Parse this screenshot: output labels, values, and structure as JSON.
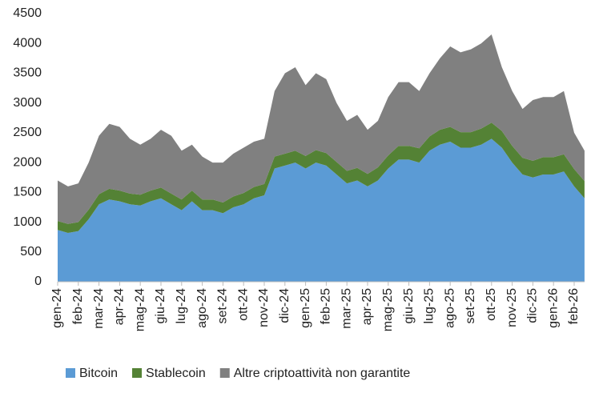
{
  "chart_data": {
    "type": "stacked-area",
    "categories": [
      "gen-24",
      null,
      "feb-24",
      null,
      "mar-24",
      null,
      "apr-24",
      null,
      "mag-24",
      null,
      "giu-24",
      null,
      "lug-24",
      null,
      "ago-24",
      null,
      "set-24",
      null,
      "ott-24",
      null,
      "nov-24",
      null,
      "dic-24",
      null,
      "gen-25",
      null,
      "feb-25",
      null,
      "mar-25",
      null,
      "apr-25",
      null,
      "mag-25",
      null,
      "giu-25",
      null,
      "lug-25",
      null,
      "ago-25",
      null,
      "set-25",
      null,
      "ott-25",
      null,
      "nov-25",
      null,
      "dic-25",
      null,
      "gen-26",
      null,
      "feb-26",
      null
    ],
    "series": [
      {
        "name": "Bitcoin",
        "color": "#5b9bd5",
        "values": [
          870,
          820,
          850,
          1050,
          1300,
          1380,
          1350,
          1300,
          1280,
          1350,
          1400,
          1300,
          1200,
          1350,
          1200,
          1200,
          1150,
          1250,
          1300,
          1400,
          1450,
          1900,
          1950,
          2000,
          1900,
          2000,
          1950,
          1800,
          1650,
          1700,
          1600,
          1700,
          1900,
          2050,
          2050,
          2000,
          2200,
          2300,
          2350,
          2250,
          2250,
          2300,
          2400,
          2250,
          2000,
          1800,
          1750,
          1800,
          1800,
          1850,
          1600,
          1400
        ]
      },
      {
        "name": "Stablecoin",
        "color": "#548235",
        "values": [
          150,
          150,
          150,
          160,
          170,
          180,
          180,
          180,
          180,
          180,
          180,
          180,
          180,
          180,
          180,
          180,
          180,
          180,
          190,
          190,
          190,
          200,
          200,
          200,
          210,
          210,
          210,
          210,
          210,
          210,
          210,
          220,
          220,
          230,
          230,
          240,
          240,
          250,
          250,
          260,
          260,
          270,
          270,
          280,
          280,
          280,
          280,
          290,
          290,
          290,
          290,
          290
        ]
      },
      {
        "name": "Altre criptoattività non garantite",
        "color": "#808080",
        "values": [
          680,
          630,
          650,
          790,
          980,
          1090,
          1070,
          920,
          840,
          870,
          970,
          970,
          820,
          770,
          720,
          620,
          670,
          720,
          760,
          760,
          760,
          1100,
          1350,
          1400,
          1190,
          1290,
          1240,
          990,
          840,
          890,
          740,
          780,
          980,
          1070,
          1070,
          960,
          1060,
          1200,
          1350,
          1340,
          1390,
          1430,
          1480,
          1070,
          920,
          820,
          1020,
          1010,
          1010,
          1060,
          610,
          510
        ]
      }
    ],
    "ylim": [
      0,
      4500
    ],
    "yticks": [
      0,
      500,
      1000,
      1500,
      2000,
      2500,
      3000,
      3500,
      4000,
      4500
    ]
  }
}
